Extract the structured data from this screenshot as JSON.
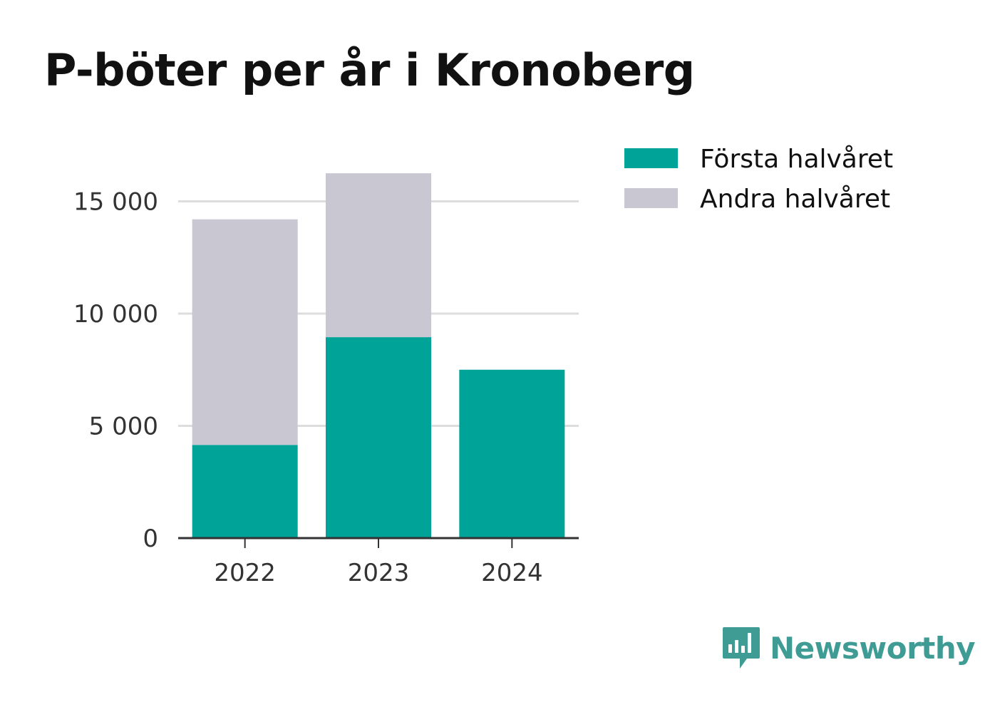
{
  "title": "P-böter per år i Kronoberg",
  "brand": {
    "name": "Newsworthy",
    "icon": "newsworthy-logo-icon"
  },
  "colors": {
    "first_half": "#00a398",
    "second_half": "#c8c7d2",
    "grid": "#dddddd",
    "axis": "#333333"
  },
  "chart_data": {
    "type": "bar",
    "stacked": true,
    "categories": [
      "2022",
      "2023",
      "2024"
    ],
    "series": [
      {
        "name": "Första halvåret",
        "values": [
          4150,
          8950,
          7500
        ]
      },
      {
        "name": "Andra halvåret",
        "values": [
          10050,
          7300,
          0
        ]
      }
    ],
    "yticks": [
      0,
      5000,
      10000,
      15000
    ],
    "ytick_labels": [
      "0",
      "5 000",
      "10 000",
      "15 000"
    ],
    "ylim": [
      0,
      16500
    ],
    "grid": true,
    "legend": "top-right"
  }
}
